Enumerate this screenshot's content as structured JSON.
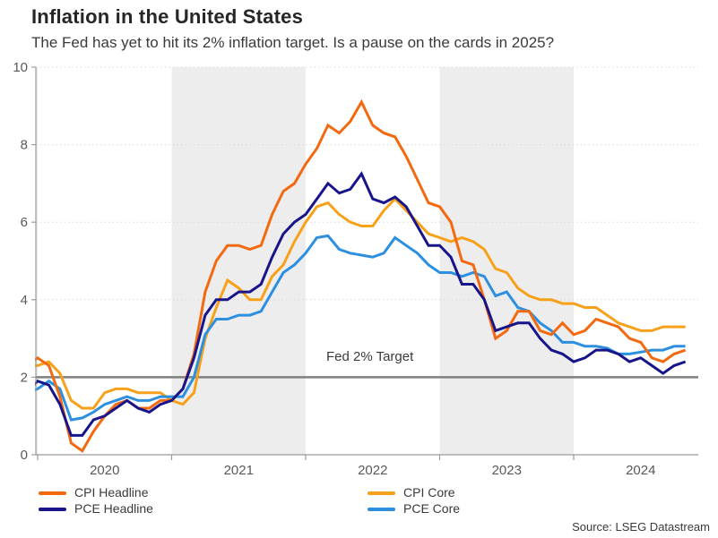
{
  "header": {
    "title": "Inflation in the United States",
    "subtitle": "The Fed has yet to hit its 2% inflation target. Is a pause on the cards in 2025?"
  },
  "chart_data": {
    "type": "line",
    "x_unit": "month",
    "x_start": "2019-12",
    "x_end": "2024-11",
    "ylim": [
      0,
      10
    ],
    "yticks": [
      0,
      2,
      4,
      6,
      8,
      10
    ],
    "years": [
      "2020",
      "2021",
      "2022",
      "2023",
      "2024"
    ],
    "shaded_years": [
      "2021",
      "2023"
    ],
    "grid": "dotted-horizontal",
    "legend_position": "bottom",
    "target_line": {
      "value": 2,
      "label": "Fed 2% Target",
      "color": "#7f7f7f"
    },
    "series": [
      {
        "name": "CPI Headline",
        "color": "#f3690f",
        "values": [
          2.3,
          2.5,
          2.3,
          1.5,
          0.3,
          0.1,
          0.6,
          1.0,
          1.3,
          1.4,
          1.2,
          1.2,
          1.4,
          1.4,
          1.7,
          2.6,
          4.2,
          5.0,
          5.4,
          5.4,
          5.3,
          5.4,
          6.2,
          6.8,
          7.0,
          7.5,
          7.9,
          8.5,
          8.3,
          8.6,
          9.1,
          8.5,
          8.3,
          8.2,
          7.7,
          7.1,
          6.5,
          6.4,
          6.0,
          5.0,
          4.9,
          4.0,
          3.0,
          3.2,
          3.7,
          3.7,
          3.2,
          3.1,
          3.4,
          3.1,
          3.2,
          3.5,
          3.4,
          3.3,
          3.0,
          2.9,
          2.5,
          2.4,
          2.6,
          2.7
        ]
      },
      {
        "name": "PCE Headline",
        "color": "#171589",
        "values": [
          1.6,
          1.9,
          1.8,
          1.3,
          0.5,
          0.5,
          0.9,
          1.0,
          1.2,
          1.4,
          1.2,
          1.1,
          1.3,
          1.4,
          1.7,
          2.5,
          3.6,
          4.0,
          4.0,
          4.2,
          4.2,
          4.4,
          5.1,
          5.7,
          6.0,
          6.2,
          6.6,
          7.0,
          6.75,
          6.85,
          7.25,
          6.6,
          6.5,
          6.65,
          6.4,
          5.9,
          5.4,
          5.4,
          5.1,
          4.4,
          4.4,
          4.0,
          3.2,
          3.3,
          3.4,
          3.4,
          3.0,
          2.7,
          2.6,
          2.4,
          2.5,
          2.7,
          2.7,
          2.6,
          2.4,
          2.5,
          2.3,
          2.1,
          2.3,
          2.4
        ]
      },
      {
        "name": "CPI Core",
        "color": "#f7a11a",
        "values": [
          2.3,
          2.3,
          2.4,
          2.1,
          1.4,
          1.2,
          1.2,
          1.6,
          1.7,
          1.7,
          1.6,
          1.6,
          1.6,
          1.4,
          1.3,
          1.6,
          3.0,
          3.8,
          4.5,
          4.3,
          4.0,
          4.0,
          4.6,
          4.9,
          5.5,
          6.0,
          6.4,
          6.5,
          6.2,
          6.0,
          5.9,
          5.9,
          6.3,
          6.6,
          6.3,
          6.0,
          5.7,
          5.6,
          5.5,
          5.6,
          5.5,
          5.3,
          4.8,
          4.7,
          4.3,
          4.1,
          4.0,
          4.0,
          3.9,
          3.9,
          3.8,
          3.8,
          3.6,
          3.4,
          3.3,
          3.2,
          3.2,
          3.3,
          3.3,
          3.3
        ]
      },
      {
        "name": "PCE Core",
        "color": "#2c8fe0",
        "values": [
          1.6,
          1.7,
          1.9,
          1.7,
          0.9,
          0.95,
          1.1,
          1.3,
          1.4,
          1.5,
          1.4,
          1.4,
          1.5,
          1.5,
          1.5,
          2.0,
          3.1,
          3.5,
          3.5,
          3.6,
          3.6,
          3.7,
          4.2,
          4.7,
          4.9,
          5.2,
          5.6,
          5.65,
          5.3,
          5.2,
          5.15,
          5.1,
          5.2,
          5.6,
          5.4,
          5.2,
          4.9,
          4.7,
          4.7,
          4.6,
          4.7,
          4.6,
          4.1,
          4.2,
          3.8,
          3.7,
          3.4,
          3.2,
          2.9,
          2.9,
          2.8,
          2.8,
          2.75,
          2.6,
          2.6,
          2.65,
          2.7,
          2.7,
          2.8,
          2.8
        ]
      }
    ],
    "style_colors": {
      "band": "#ededed",
      "grid": "#d8d8d8",
      "axis": "#9b9b9b",
      "tick_label": "#595959"
    }
  },
  "legend": {
    "columns": [
      [
        "CPI Headline",
        "PCE Headline"
      ],
      [
        "CPI Core",
        "PCE Core"
      ]
    ]
  },
  "footer": {
    "source": "Source: LSEG Datastream"
  }
}
